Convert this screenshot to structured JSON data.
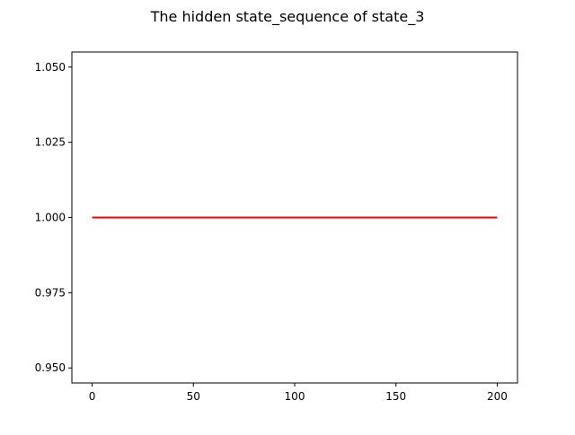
{
  "chart_data": {
    "type": "line",
    "title": "The hidden state_sequence of state_3",
    "xlabel": "",
    "ylabel": "",
    "xlim": [
      -10,
      210
    ],
    "ylim": [
      0.945,
      1.055
    ],
    "x_ticks": [
      0,
      50,
      100,
      150,
      200
    ],
    "x_tick_labels": [
      "0",
      "50",
      "100",
      "150",
      "200"
    ],
    "y_ticks": [
      0.95,
      0.975,
      1.0,
      1.025,
      1.05
    ],
    "y_tick_labels": [
      "0.950",
      "0.975",
      "1.000",
      "1.025",
      "1.050"
    ],
    "grid": false,
    "legend": "none",
    "series": [
      {
        "color": "#ff0000",
        "x": [
          0,
          200
        ],
        "y": [
          1.0,
          1.0
        ]
      }
    ]
  }
}
